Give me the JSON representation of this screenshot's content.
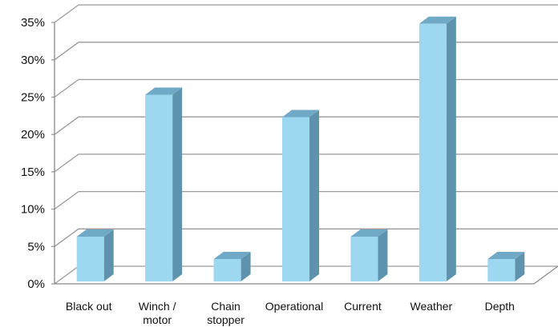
{
  "chart_data": {
    "type": "bar",
    "style": "3d-column",
    "categories": [
      [
        "Black out"
      ],
      [
        "Winch /",
        "motor"
      ],
      [
        "Chain",
        "stopper"
      ],
      [
        "Operational"
      ],
      [
        "Current"
      ],
      [
        "Weather"
      ],
      [
        "Depth"
      ]
    ],
    "values": [
      6,
      25,
      3,
      22,
      6,
      34.5,
      3
    ],
    "value_unit": "%",
    "yticks": [
      "0%",
      "5%",
      "10%",
      "15%",
      "20%",
      "25%",
      "30%",
      "35%"
    ],
    "ylim": [
      0,
      35
    ],
    "ystep": 5,
    "grid": true,
    "legend": "none",
    "colors": {
      "bar_front": "#9dd8f0",
      "bar_top": "#6fa9c6",
      "bar_side": "#5f93ad",
      "grid": "#9a9a9a",
      "wall_edge": "#8a8a8a"
    }
  }
}
